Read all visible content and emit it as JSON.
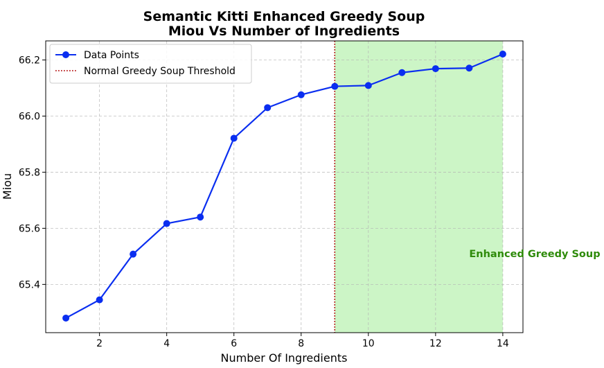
{
  "chart_data": {
    "type": "line",
    "title": [
      "Semantic Kitti Enhanced Greedy Soup",
      "Miou Vs Number of Ingredients"
    ],
    "xlabel": "Number Of Ingredients",
    "ylabel": "Miou",
    "xlim": [
      0.4,
      14.6
    ],
    "ylim": [
      65.228,
      66.268
    ],
    "xticks": [
      2,
      4,
      6,
      8,
      10,
      12,
      14
    ],
    "yticks": [
      65.4,
      65.6,
      65.8,
      66.0,
      66.2
    ],
    "ytick_labels": [
      "65.4",
      "65.6",
      "65.8",
      "66.0",
      "66.2"
    ],
    "grid": true,
    "legend_position": "top-left",
    "series": [
      {
        "name": "Data Points",
        "color": "#0a2ef0",
        "x": [
          1,
          2,
          3,
          4,
          5,
          6,
          7,
          8,
          9,
          10,
          11,
          12,
          13,
          14
        ],
        "y": [
          65.28,
          65.345,
          65.508,
          65.617,
          65.64,
          65.921,
          66.03,
          66.076,
          66.106,
          66.109,
          66.155,
          66.169,
          66.171,
          66.221
        ]
      }
    ],
    "threshold": {
      "name": "Normal Greedy Soup Threshold",
      "x": 9,
      "color": "#b00000",
      "style": "dotted"
    },
    "shaded_region": {
      "x_start": 9,
      "x_end": 14,
      "color": "#ccf5c6"
    },
    "annotation": {
      "text": "Enhanced Greedy Soup",
      "x": 13,
      "y": 65.51,
      "color": "#2e8b0a"
    }
  }
}
